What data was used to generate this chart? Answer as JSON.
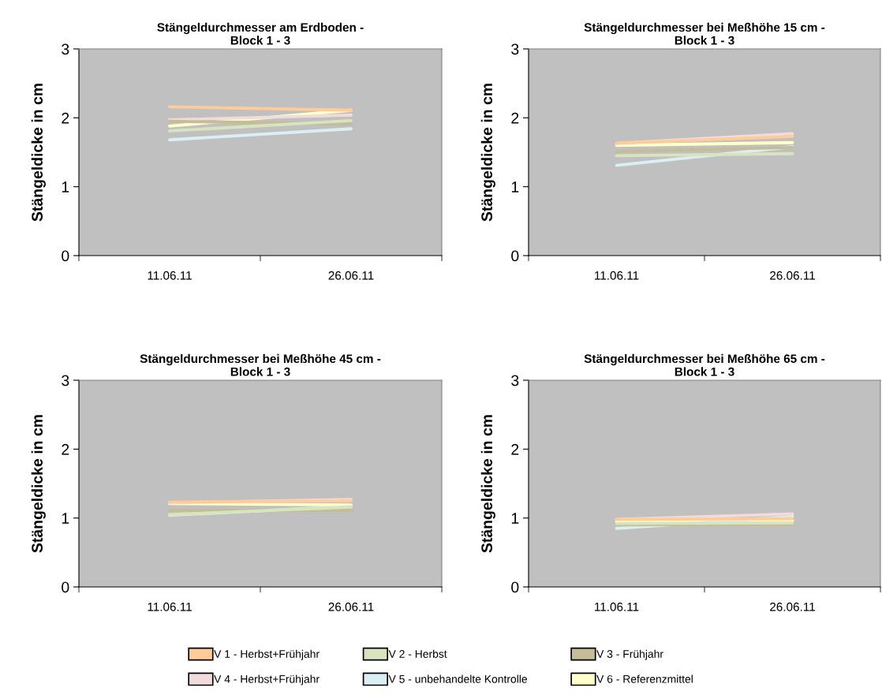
{
  "chart_data": [
    {
      "type": "line",
      "title": "Stängeldurchmesser am Erdboden -\nBlock 1 - 3",
      "ylabel": "Stängeldicke in cm",
      "categories": [
        "11.06.11",
        "26.06.11"
      ],
      "ylim": [
        0,
        3
      ],
      "yticks": [
        0,
        1,
        2,
        3
      ],
      "grid": false,
      "marker": "none",
      "line_style": "solid",
      "legend": "bottom",
      "series": [
        {
          "name": "V 1 - Herbst+Frühjahr",
          "color": "#ffcc99",
          "values": [
            2.16,
            2.11
          ]
        },
        {
          "name": "V 2 - Herbst",
          "color": "#d7e4bd",
          "values": [
            1.81,
            1.96
          ]
        },
        {
          "name": "V 3 - Frühjahr",
          "color": "#c4bd97",
          "values": [
            1.95,
            1.91
          ]
        },
        {
          "name": "V 4 - Herbst+Frühjahr",
          "color": "#f2dcdb",
          "values": [
            1.97,
            2.04
          ]
        },
        {
          "name": "V 5 - unbehandelte Kontrolle",
          "color": "#dbeef4",
          "values": [
            1.68,
            1.84
          ]
        },
        {
          "name": "V 6 - Referenzmittel",
          "color": "#ffffcc",
          "values": [
            1.88,
            2.11
          ]
        }
      ]
    },
    {
      "type": "line",
      "title": "Stängeldurchmesser bei Meßhöhe 15 cm -\nBlock 1 - 3",
      "ylabel": "Stängeldicke in cm",
      "categories": [
        "11.06.11",
        "26.06.11"
      ],
      "ylim": [
        0,
        3
      ],
      "yticks": [
        0,
        1,
        2,
        3
      ],
      "grid": false,
      "marker": "none",
      "line_style": "solid",
      "series": [
        {
          "color": "#ffcc99",
          "values": [
            1.63,
            1.73
          ]
        },
        {
          "color": "#d7e4bd",
          "values": [
            1.45,
            1.48
          ]
        },
        {
          "color": "#c4bd97",
          "values": [
            1.51,
            1.57
          ]
        },
        {
          "color": "#f2dcdb",
          "values": [
            1.63,
            1.77
          ]
        },
        {
          "color": "#dbeef4",
          "values": [
            1.31,
            1.58
          ]
        },
        {
          "color": "#ffffcc",
          "values": [
            1.6,
            1.64
          ]
        }
      ]
    },
    {
      "type": "line",
      "title": "Stängeldurchmesser bei Meßhöhe 45 cm -\nBlock 1 - 3",
      "ylabel": "Stängeldicke in cm",
      "categories": [
        "11.06.11",
        "26.06.11"
      ],
      "ylim": [
        0,
        3
      ],
      "yticks": [
        0,
        1,
        2,
        3
      ],
      "grid": false,
      "marker": "none",
      "line_style": "solid",
      "series": [
        {
          "color": "#ffcc99",
          "values": [
            1.23,
            1.25
          ]
        },
        {
          "color": "#d7e4bd",
          "values": [
            1.05,
            1.16
          ]
        },
        {
          "color": "#c4bd97",
          "values": [
            1.11,
            1.11
          ]
        },
        {
          "color": "#f2dcdb",
          "values": [
            1.22,
            1.27
          ]
        },
        {
          "color": "#dbeef4",
          "values": [
            1.04,
            1.17
          ]
        },
        {
          "color": "#ffffcc",
          "values": [
            1.21,
            1.19
          ]
        }
      ]
    },
    {
      "type": "line",
      "title": "Stängeldurchmesser bei Meßhöhe 65 cm -\nBlock 1 - 3",
      "ylabel": "Stängeldicke in cm",
      "categories": [
        "11.06.11",
        "26.06.11"
      ],
      "ylim": [
        0,
        3
      ],
      "yticks": [
        0,
        1,
        2,
        3
      ],
      "grid": false,
      "marker": "none",
      "line_style": "solid",
      "series": [
        {
          "color": "#ffcc99",
          "values": [
            0.98,
            0.99
          ]
        },
        {
          "color": "#d7e4bd",
          "values": [
            0.92,
            0.93
          ]
        },
        {
          "color": "#c4bd97",
          "values": [
            0.9,
            0.91
          ]
        },
        {
          "color": "#f2dcdb",
          "values": [
            0.98,
            1.06
          ]
        },
        {
          "color": "#dbeef4",
          "values": [
            0.85,
            1.02
          ]
        },
        {
          "color": "#ffffcc",
          "values": [
            0.95,
            0.96
          ]
        }
      ]
    }
  ]
}
